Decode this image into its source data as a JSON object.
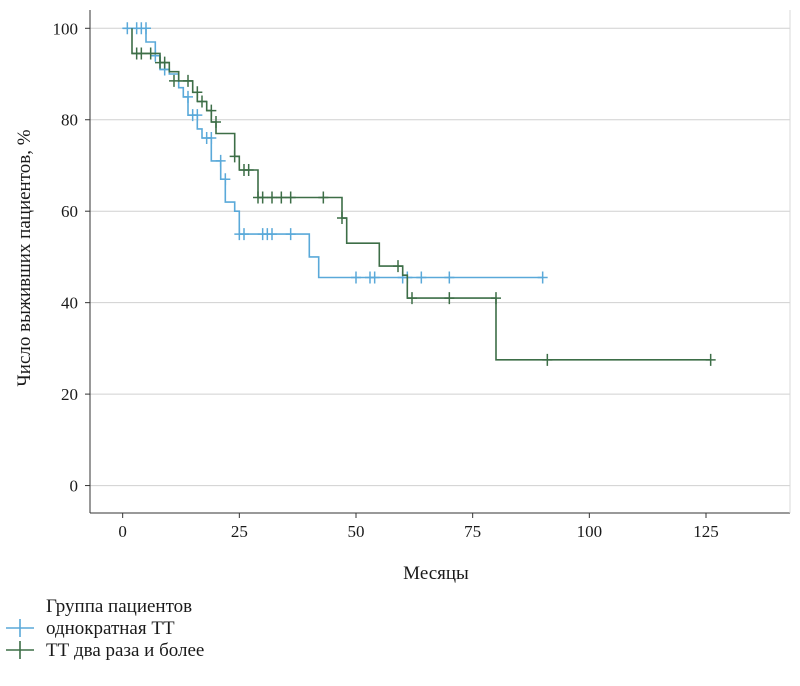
{
  "chart_data": {
    "type": "line",
    "title": "",
    "xlabel": "Месяцы",
    "ylabel": "Число выживших пациентов, %",
    "xlim": [
      -7,
      143
    ],
    "ylim": [
      -6,
      104
    ],
    "xticks": [
      0,
      25,
      50,
      75,
      100,
      125
    ],
    "yticks": [
      0,
      20,
      40,
      60,
      80,
      100
    ],
    "grid": "horizontal",
    "legend_position": "bottom-left",
    "legend_title": "Группа пациентов",
    "series": [
      {
        "name": "однократная ТТ",
        "color": "#5aa9d9",
        "steps": [
          [
            0,
            100
          ],
          [
            5,
            100
          ],
          [
            5,
            97
          ],
          [
            7,
            97
          ],
          [
            7,
            94
          ],
          [
            8,
            94
          ],
          [
            8,
            91
          ],
          [
            10,
            91
          ],
          [
            10,
            90
          ],
          [
            12,
            90
          ],
          [
            12,
            87
          ],
          [
            13,
            87
          ],
          [
            13,
            85
          ],
          [
            14,
            85
          ],
          [
            14,
            81
          ],
          [
            16,
            81
          ],
          [
            16,
            78
          ],
          [
            17,
            78
          ],
          [
            17,
            76
          ],
          [
            19,
            76
          ],
          [
            19,
            71
          ],
          [
            21,
            71
          ],
          [
            21,
            67
          ],
          [
            22,
            67
          ],
          [
            22,
            62
          ],
          [
            24,
            62
          ],
          [
            24,
            60
          ],
          [
            25,
            60
          ],
          [
            25,
            55
          ],
          [
            40,
            55
          ],
          [
            40,
            50
          ],
          [
            42,
            50
          ],
          [
            42,
            45.5
          ],
          [
            90,
            45.5
          ]
        ],
        "censored": [
          [
            1,
            100
          ],
          [
            3,
            100
          ],
          [
            4,
            100
          ],
          [
            5,
            100
          ],
          [
            7,
            94
          ],
          [
            9,
            91
          ],
          [
            14,
            85
          ],
          [
            15,
            81
          ],
          [
            16,
            81
          ],
          [
            18,
            76
          ],
          [
            19,
            76
          ],
          [
            21,
            71
          ],
          [
            22,
            67
          ],
          [
            25,
            55
          ],
          [
            26,
            55
          ],
          [
            30,
            55
          ],
          [
            31,
            55
          ],
          [
            32,
            55
          ],
          [
            36,
            55
          ],
          [
            50,
            45.5
          ],
          [
            53,
            45.5
          ],
          [
            54,
            45.5
          ],
          [
            60,
            45.5
          ],
          [
            61,
            45.5
          ],
          [
            64,
            45.5
          ],
          [
            70,
            45.5
          ],
          [
            90,
            45.5
          ]
        ]
      },
      {
        "name": "ТТ два раза и более",
        "color": "#3d6e47",
        "steps": [
          [
            2,
            100
          ],
          [
            2,
            94.5
          ],
          [
            8,
            94.5
          ],
          [
            8,
            92.5
          ],
          [
            10,
            92.5
          ],
          [
            10,
            90.5
          ],
          [
            12,
            90.5
          ],
          [
            12,
            88.5
          ],
          [
            15,
            88.5
          ],
          [
            15,
            86
          ],
          [
            16,
            86
          ],
          [
            16,
            84
          ],
          [
            18,
            84
          ],
          [
            18,
            82
          ],
          [
            19,
            82
          ],
          [
            19,
            79.5
          ],
          [
            20,
            79.5
          ],
          [
            20,
            77
          ],
          [
            24,
            77
          ],
          [
            24,
            72
          ],
          [
            25,
            72
          ],
          [
            25,
            69
          ],
          [
            29,
            69
          ],
          [
            29,
            63
          ],
          [
            47,
            63
          ],
          [
            47,
            58.5
          ],
          [
            48,
            58.5
          ],
          [
            48,
            53
          ],
          [
            55,
            53
          ],
          [
            55,
            48
          ],
          [
            60,
            48
          ],
          [
            60,
            46
          ],
          [
            61,
            46
          ],
          [
            61,
            41
          ],
          [
            80,
            41
          ],
          [
            80,
            27.5
          ],
          [
            126,
            27.5
          ]
        ],
        "censored": [
          [
            3,
            94.5
          ],
          [
            4,
            94.5
          ],
          [
            6,
            94.5
          ],
          [
            8,
            92.5
          ],
          [
            9,
            92.5
          ],
          [
            11,
            88.5
          ],
          [
            14,
            88.5
          ],
          [
            16,
            86
          ],
          [
            17,
            84
          ],
          [
            19,
            82
          ],
          [
            20,
            79.5
          ],
          [
            24,
            72
          ],
          [
            26,
            69
          ],
          [
            27,
            69
          ],
          [
            29,
            63
          ],
          [
            30,
            63
          ],
          [
            32,
            63
          ],
          [
            34,
            63
          ],
          [
            36,
            63
          ],
          [
            43,
            63
          ],
          [
            47,
            58.5
          ],
          [
            59,
            48
          ],
          [
            62,
            41
          ],
          [
            70,
            41
          ],
          [
            80,
            41
          ],
          [
            91,
            27.5
          ],
          [
            126,
            27.5
          ]
        ]
      }
    ]
  }
}
